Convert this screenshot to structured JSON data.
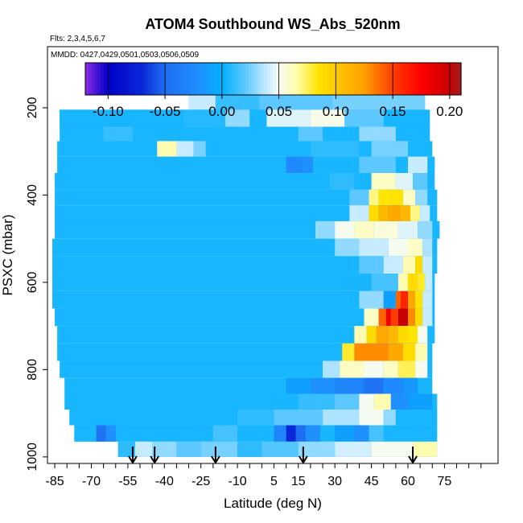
{
  "chart_data": {
    "type": "heatmap",
    "title": "ATOM4 Southbound WS_Abs_520nm",
    "flights_note": "Flts: 2,3,4,5,6,7",
    "dates_note": "MMDD: 0427,0429,0501,0503,0506,0509",
    "xlabel": "Latitude (deg N)",
    "ylabel": "PSXC (mbar)",
    "xlim": [
      -88,
      97
    ],
    "ylim": [
      1015,
      60
    ],
    "y_reversed": true,
    "grid": false,
    "x_ticks": [
      -85,
      -70,
      -55,
      -40,
      -25,
      -10,
      5,
      15,
      30,
      45,
      60,
      75
    ],
    "x_minor_step": 5,
    "y_ticks": [
      200,
      400,
      600,
      800,
      1000
    ],
    "colorbar": {
      "placement": "top-inset",
      "range": [
        -0.12,
        0.21
      ],
      "ticks": [
        -0.1,
        -0.05,
        0.0,
        0.05,
        0.1,
        0.15,
        0.2
      ],
      "tick_labels": [
        "-0.10",
        "-0.05",
        "0.00",
        "0.05",
        "0.10",
        "0.15",
        "0.20"
      ],
      "stops": [
        {
          "value": -0.12,
          "color": "#8a2be2"
        },
        {
          "value": -0.1,
          "color": "#0000c8"
        },
        {
          "value": -0.07,
          "color": "#0a28d8"
        },
        {
          "value": -0.05,
          "color": "#1e6ef0"
        },
        {
          "value": -0.02,
          "color": "#1e90ff"
        },
        {
          "value": 0.0,
          "color": "#00b0ff"
        },
        {
          "value": 0.02,
          "color": "#5cc8ff"
        },
        {
          "value": 0.04,
          "color": "#c8ecff"
        },
        {
          "value": 0.05,
          "color": "#f6fbf0"
        },
        {
          "value": 0.065,
          "color": "#fffcb0"
        },
        {
          "value": 0.085,
          "color": "#ffe400"
        },
        {
          "value": 0.1,
          "color": "#ffc800"
        },
        {
          "value": 0.125,
          "color": "#ffa000"
        },
        {
          "value": 0.15,
          "color": "#ff3c00"
        },
        {
          "value": 0.175,
          "color": "#ff0000"
        },
        {
          "value": 0.2,
          "color": "#c80000"
        },
        {
          "value": 0.21,
          "color": "#a01e1e"
        }
      ]
    },
    "profile_markers_lat": [
      -53,
      -44,
      -19,
      17,
      62
    ],
    "background_value": 0.005,
    "rows": [
      {
        "p": 182,
        "lat0": -30,
        "lat1": 67,
        "segs": [
          [
            -30,
            -19,
            0.04
          ],
          [
            -19,
            -1,
            0.012
          ],
          [
            -1,
            29,
            0.02
          ],
          [
            29,
            67,
            0.025
          ]
        ]
      },
      {
        "p": 227,
        "lat0": -83,
        "lat1": 69,
        "segs": [
          [
            -83,
            -32,
            0.005
          ],
          [
            -32,
            -15,
            0.008
          ],
          [
            -15,
            -5,
            0.03
          ],
          [
            2,
            20,
            0.045
          ],
          [
            20,
            34,
            0.052
          ],
          [
            34,
            50,
            0.02
          ]
        ]
      },
      {
        "p": 260,
        "lat0": -83,
        "lat1": 69,
        "segs": [
          [
            -65,
            -53,
            0.012
          ],
          [
            -20,
            -10,
            0.005
          ],
          [
            15,
            25,
            0.02
          ],
          [
            40,
            55,
            0.03
          ]
        ]
      },
      {
        "p": 293,
        "lat0": -84,
        "lat1": 70,
        "segs": [
          [
            -43,
            -35,
            0.065
          ],
          [
            -35,
            -28,
            0.04
          ],
          [
            -28,
            -23,
            0.025
          ],
          [
            20,
            40,
            0.01
          ],
          [
            45,
            60,
            0.025
          ]
        ]
      },
      {
        "p": 331,
        "lat0": -84,
        "lat1": 71,
        "segs": [
          [
            10,
            17,
            -0.025
          ],
          [
            17,
            21,
            -0.02
          ],
          [
            40,
            55,
            0.02
          ],
          [
            60,
            68,
            0.04
          ]
        ]
      },
      {
        "p": 368,
        "lat0": -85,
        "lat1": 71,
        "segs": [
          [
            28,
            38,
            0.01
          ],
          [
            45,
            55,
            0.06
          ],
          [
            55,
            62,
            0.045
          ],
          [
            62,
            68,
            0.02
          ]
        ]
      },
      {
        "p": 407,
        "lat0": -85,
        "lat1": 72,
        "segs": [
          [
            36,
            44,
            0.02
          ],
          [
            44,
            48,
            0.07
          ],
          [
            48,
            53,
            0.085
          ],
          [
            53,
            58,
            0.085
          ],
          [
            58,
            63,
            0.06
          ],
          [
            63,
            68,
            0.03
          ]
        ]
      },
      {
        "p": 440,
        "lat0": -85,
        "lat1": 72,
        "segs": [
          [
            36,
            44,
            0.04
          ],
          [
            44,
            48,
            0.09
          ],
          [
            48,
            52,
            0.11
          ],
          [
            52,
            57,
            0.12
          ],
          [
            57,
            61,
            0.11
          ],
          [
            61,
            65,
            0.07
          ],
          [
            65,
            69,
            0.04
          ]
        ]
      },
      {
        "p": 480,
        "lat0": -85,
        "lat1": 73,
        "segs": [
          [
            22,
            30,
            0.03
          ],
          [
            30,
            38,
            0.05
          ],
          [
            38,
            46,
            0.06
          ],
          [
            46,
            56,
            0.055
          ],
          [
            56,
            64,
            0.045
          ],
          [
            64,
            70,
            0.03
          ]
        ]
      },
      {
        "p": 520,
        "lat0": -86,
        "lat1": 72,
        "segs": [
          [
            30,
            40,
            0.03
          ],
          [
            40,
            52,
            0.04
          ],
          [
            52,
            60,
            0.05
          ],
          [
            60,
            66,
            0.06
          ],
          [
            66,
            70,
            0.035
          ]
        ]
      },
      {
        "p": 560,
        "lat0": -86,
        "lat1": 72,
        "segs": [
          [
            40,
            50,
            0.02
          ],
          [
            50,
            58,
            0.04
          ],
          [
            58,
            63,
            0.065
          ],
          [
            63,
            66,
            0.09
          ],
          [
            66,
            70,
            0.04
          ]
        ]
      },
      {
        "p": 600,
        "lat0": -86,
        "lat1": 71,
        "segs": [
          [
            45,
            56,
            0.015
          ],
          [
            56,
            60,
            0.065
          ],
          [
            60,
            64,
            0.09
          ],
          [
            64,
            67,
            0.08
          ],
          [
            67,
            70,
            0.04
          ]
        ]
      },
      {
        "p": 640,
        "lat0": -86,
        "lat1": 71,
        "segs": [
          [
            40,
            50,
            0.03
          ],
          [
            50,
            55,
            -0.01
          ],
          [
            55,
            57,
            0.14
          ],
          [
            57,
            60,
            0.16
          ],
          [
            60,
            63,
            0.12
          ],
          [
            63,
            66,
            0.085
          ],
          [
            66,
            70,
            0.04
          ]
        ]
      },
      {
        "p": 680,
        "lat0": -85,
        "lat1": 71,
        "segs": [
          [
            42,
            48,
            0.06
          ],
          [
            48,
            51,
            0.14
          ],
          [
            51,
            53,
            0.18
          ],
          [
            53,
            56,
            0.15
          ],
          [
            56,
            60,
            0.2
          ],
          [
            60,
            63,
            0.13
          ],
          [
            63,
            66,
            0.09
          ],
          [
            66,
            70,
            0.04
          ]
        ]
      },
      {
        "p": 720,
        "lat0": -84,
        "lat1": 71,
        "segs": [
          [
            38,
            43,
            0.065
          ],
          [
            43,
            47,
            0.09
          ],
          [
            47,
            52,
            0.12
          ],
          [
            52,
            56,
            0.11
          ],
          [
            56,
            60,
            0.09
          ],
          [
            60,
            64,
            0.085
          ],
          [
            64,
            68,
            0.05
          ]
        ]
      },
      {
        "p": 760,
        "lat0": -84,
        "lat1": 70,
        "segs": [
          [
            33,
            38,
            0.08
          ],
          [
            38,
            44,
            0.13
          ],
          [
            44,
            52,
            0.13
          ],
          [
            52,
            58,
            0.12
          ],
          [
            58,
            63,
            0.09
          ],
          [
            63,
            68,
            0.065
          ]
        ]
      },
      {
        "p": 800,
        "lat0": -83,
        "lat1": 70,
        "segs": [
          [
            25,
            32,
            0.035
          ],
          [
            32,
            42,
            0.06
          ],
          [
            42,
            50,
            0.05
          ],
          [
            50,
            56,
            0.06
          ],
          [
            56,
            63,
            0.075
          ],
          [
            63,
            68,
            0.05
          ]
        ]
      },
      {
        "p": 838,
        "lat0": -81,
        "lat1": 70,
        "segs": [
          [
            10,
            20,
            -0.01
          ],
          [
            20,
            30,
            -0.02
          ],
          [
            30,
            42,
            -0.03
          ],
          [
            42,
            50,
            -0.045
          ],
          [
            50,
            58,
            -0.025
          ],
          [
            58,
            64,
            -0.015
          ]
        ]
      },
      {
        "p": 873,
        "lat0": -81,
        "lat1": 72,
        "segs": [
          [
            15,
            30,
            0.012
          ],
          [
            30,
            40,
            0.02
          ],
          [
            40,
            46,
            0.05
          ],
          [
            46,
            53,
            0.065
          ],
          [
            53,
            60,
            -0.02
          ],
          [
            60,
            70,
            -0.01
          ]
        ]
      },
      {
        "p": 910,
        "lat0": -79,
        "lat1": 72,
        "segs": [
          [
            -10,
            5,
            0.01
          ],
          [
            5,
            25,
            0.02
          ],
          [
            25,
            40,
            0.035
          ],
          [
            40,
            50,
            0.05
          ],
          [
            50,
            55,
            0.03
          ]
        ]
      },
      {
        "p": 945,
        "lat0": -77,
        "lat1": 72,
        "segs": [
          [
            -68,
            -64,
            -0.045
          ],
          [
            -64,
            -60,
            -0.02
          ],
          [
            -20,
            -10,
            0.015
          ],
          [
            5,
            10,
            -0.03
          ],
          [
            10,
            14,
            -0.07
          ],
          [
            14,
            18,
            -0.05
          ],
          [
            18,
            24,
            -0.02
          ],
          [
            30,
            38,
            -0.01
          ],
          [
            38,
            44,
            -0.02
          ],
          [
            44,
            50,
            0.015
          ]
        ]
      },
      {
        "p": 985,
        "lat0": -59,
        "lat1": 72,
        "segs": [
          [
            -59,
            -52,
            0.01
          ],
          [
            -52,
            -45,
            0.04
          ],
          [
            -45,
            -35,
            0.03
          ],
          [
            -35,
            -25,
            0.02
          ],
          [
            -25,
            -10,
            0.025
          ],
          [
            -10,
            0,
            0.01
          ],
          [
            0,
            15,
            0.018
          ],
          [
            15,
            30,
            0.03
          ],
          [
            30,
            45,
            0.042
          ],
          [
            45,
            62,
            0.05
          ],
          [
            62,
            72,
            0.065
          ]
        ]
      }
    ]
  }
}
